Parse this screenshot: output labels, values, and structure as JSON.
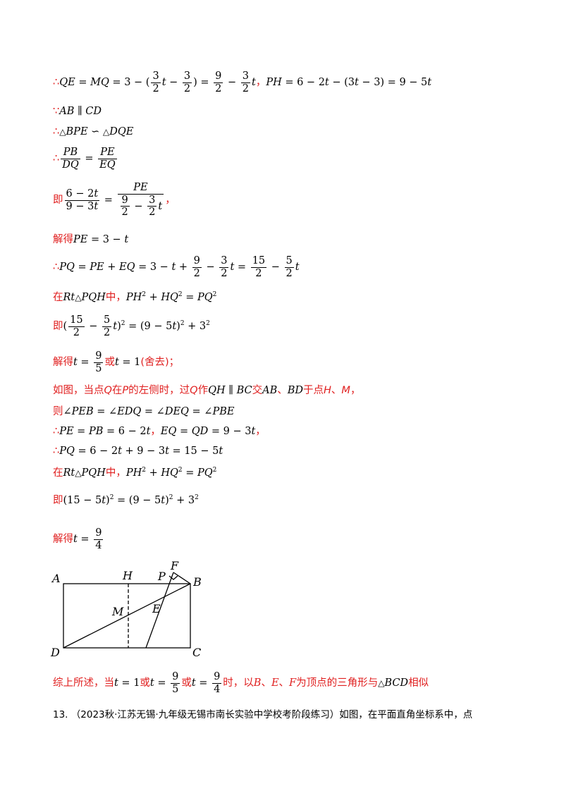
{
  "lines": {
    "l1": "∴QE = MQ = 3 − (3/2 t − 3/2) = 9/2 − 3/2 t，PH = 6 − 2t − (3t − 3) = 9 − 5t",
    "l2": "∵AB ∥ CD",
    "l3": "∴△BPE ∽ △DQE",
    "l4": "∴PB/DQ = PE/EQ",
    "l5": "即 (6 − 2t)/(9 − 3t) = PE/(9/2 − 3/2 t)，",
    "l6": "解得PE = 3 − t",
    "l7": "∴PQ = PE + EQ = 3 − t + 9/2 − 3/2 t = 15/2 − 5/2 t",
    "l8": "在Rt△PQH中，PH² + HQ² = PQ²",
    "l9": "即(15/2 − 5/2 t)² = (9 − 5t)² + 3²",
    "l10": "解得t = 9/5或t = 1(舍去)；",
    "l11": "如图，当点Q在P的左侧时，过Q作QH ∥ BC交AB、BD于点H、M，",
    "l12": "则∠PEB = ∠EDQ = ∠DEQ = ∠PBE",
    "l13": "∴PE = PB = 6 − 2t，EQ = QD = 9 − 3t，",
    "l14": "∴PQ = 6 − 2t + 9 − 3t = 15 − 5t",
    "l15": "在Rt△PQH中，PH² + HQ² = PQ²",
    "l16": "即(15 − 5t)² = (9 − 5t)² + 3²",
    "l17": "解得t = 9/4",
    "l18": "综上所述，当t = 1或t = 9/5或t = 9/4时，以B、E、F为顶点的三角形与△BCD相似"
  },
  "text": {
    "ji": "即",
    "jiede": "解得",
    "zai": "在",
    "zhong": "中，",
    "huo": "或",
    "sheqü": "(舍去)；",
    "comma": "，",
    "zongshang": "综上所述，当",
    "shi": "时，以",
    "wei": "为顶点的三角形与",
    "xiangsi": "相似"
  },
  "diagram_labels": {
    "A": "A",
    "H": "H",
    "P": "P",
    "F": "F",
    "B": "B",
    "M": "M",
    "E": "E",
    "D": "D",
    "C": "C"
  },
  "footer": "13. （2023秋·江苏无锡·九年级无锡市南长实验中学校考阶段练习）如图，在平面直角坐标系中，点"
}
